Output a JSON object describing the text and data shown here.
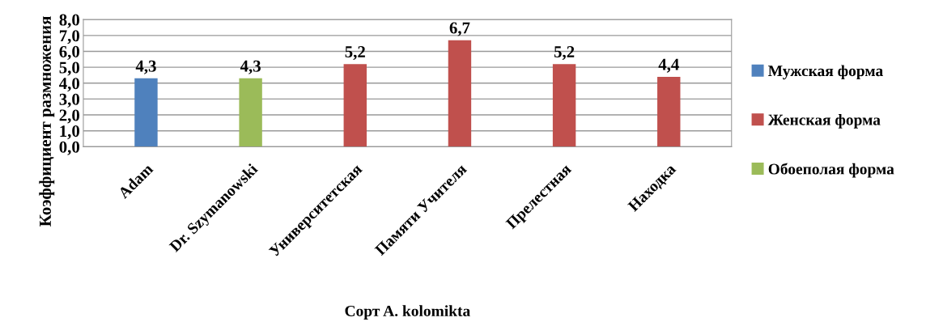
{
  "chart_data": {
    "type": "bar",
    "xlabel": "Сорт A. kolomikta",
    "ylabel": "Коэффициент размножения",
    "categories": [
      "Adam",
      "Dr. Szymanowski",
      "Университетская",
      "Памяти Учителя",
      "Прелестная",
      "Находка"
    ],
    "series": [
      {
        "name": "Мужская форма",
        "color": "#4f81bd",
        "values": [
          4.3,
          null,
          null,
          null,
          null,
          null
        ]
      },
      {
        "name": "Женская форма",
        "color": "#c0504d",
        "values": [
          null,
          null,
          5.2,
          6.7,
          5.2,
          4.4
        ]
      },
      {
        "name": "Обоеполая форма",
        "color": "#9bbb59",
        "values": [
          null,
          4.3,
          null,
          null,
          null,
          null
        ]
      }
    ],
    "ylim": [
      0,
      8
    ],
    "yticks": [
      {
        "value": 0,
        "label": "0,0"
      },
      {
        "value": 1,
        "label": "1,0"
      },
      {
        "value": 2,
        "label": "2,0"
      },
      {
        "value": 3,
        "label": "3,0"
      },
      {
        "value": 4,
        "label": "4,0"
      },
      {
        "value": 5,
        "label": "5,0"
      },
      {
        "value": 6,
        "label": "6,0"
      },
      {
        "value": 7,
        "label": "7,0"
      },
      {
        "value": 8,
        "label": "8,0"
      }
    ],
    "value_labels": [
      "4,3",
      "4,3",
      "5,2",
      "6,7",
      "5,2",
      "4,4"
    ],
    "grid": "y",
    "legend": "right"
  }
}
